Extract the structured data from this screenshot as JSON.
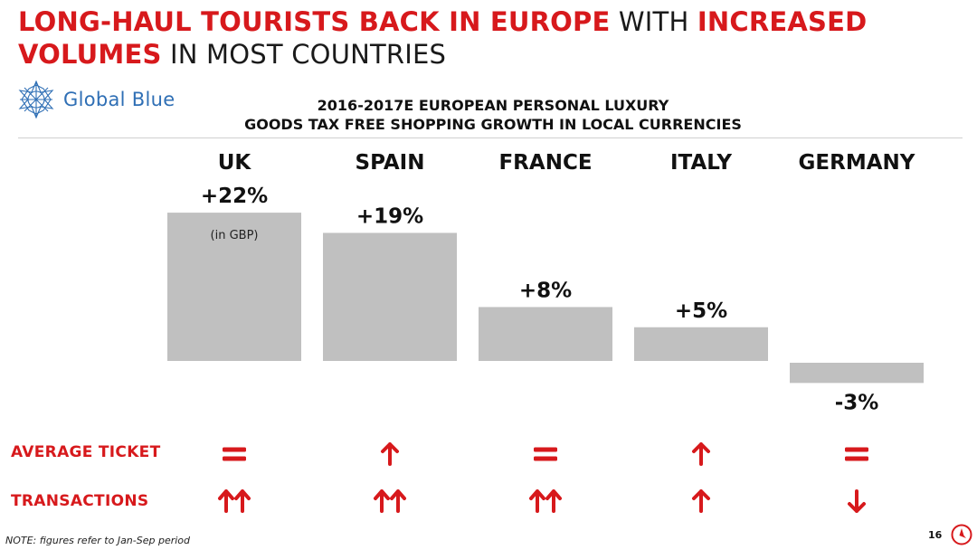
{
  "title": {
    "part1": "LONG-HAUL TOURISTS BACK IN EUROPE",
    "part2": " WITH ",
    "part3": "INCREASED VOLUMES",
    "part4": " IN MOST COUNTRIES"
  },
  "logo": {
    "text": "Global Blue",
    "icon": "globe-star-icon"
  },
  "chart_data": {
    "type": "bar",
    "title": "2016-2017E EUROPEAN PERSONAL LUXURY GOODS TAX FREE SHOPPING GROWTH IN LOCAL CURRENCIES",
    "title_lines": [
      "2016-2017E EUROPEAN PERSONAL LUXURY",
      "GOODS TAX FREE SHOPPING GROWTH IN LOCAL CURRENCIES"
    ],
    "categories": [
      "UK",
      "SPAIN",
      "FRANCE",
      "ITALY",
      "GERMANY"
    ],
    "values": [
      22,
      19,
      8,
      5,
      -3
    ],
    "value_labels": [
      "+22%",
      "+19%",
      "+8%",
      "+5%",
      "-3%"
    ],
    "annotations": [
      {
        "category": "UK",
        "text": "(in GBP)"
      }
    ],
    "bar_color": "#c0c0c0",
    "grid": false,
    "legend": "none"
  },
  "indicators": {
    "average_ticket": {
      "label": "AVERAGE TICKET",
      "values": [
        "equal",
        "up",
        "equal",
        "up",
        "equal"
      ]
    },
    "transactions": {
      "label": "TRANSACTIONS",
      "values": [
        "double-up",
        "double-up",
        "double-up",
        "up",
        "down"
      ]
    }
  },
  "colors": {
    "accent": "#d7191c",
    "bar": "#c0c0c0",
    "logo": "#2f6fb5"
  },
  "footer": {
    "note": "NOTE: figures refer to Jan-Sep period",
    "page": "16",
    "brand_icon": "brand-circle-icon"
  }
}
